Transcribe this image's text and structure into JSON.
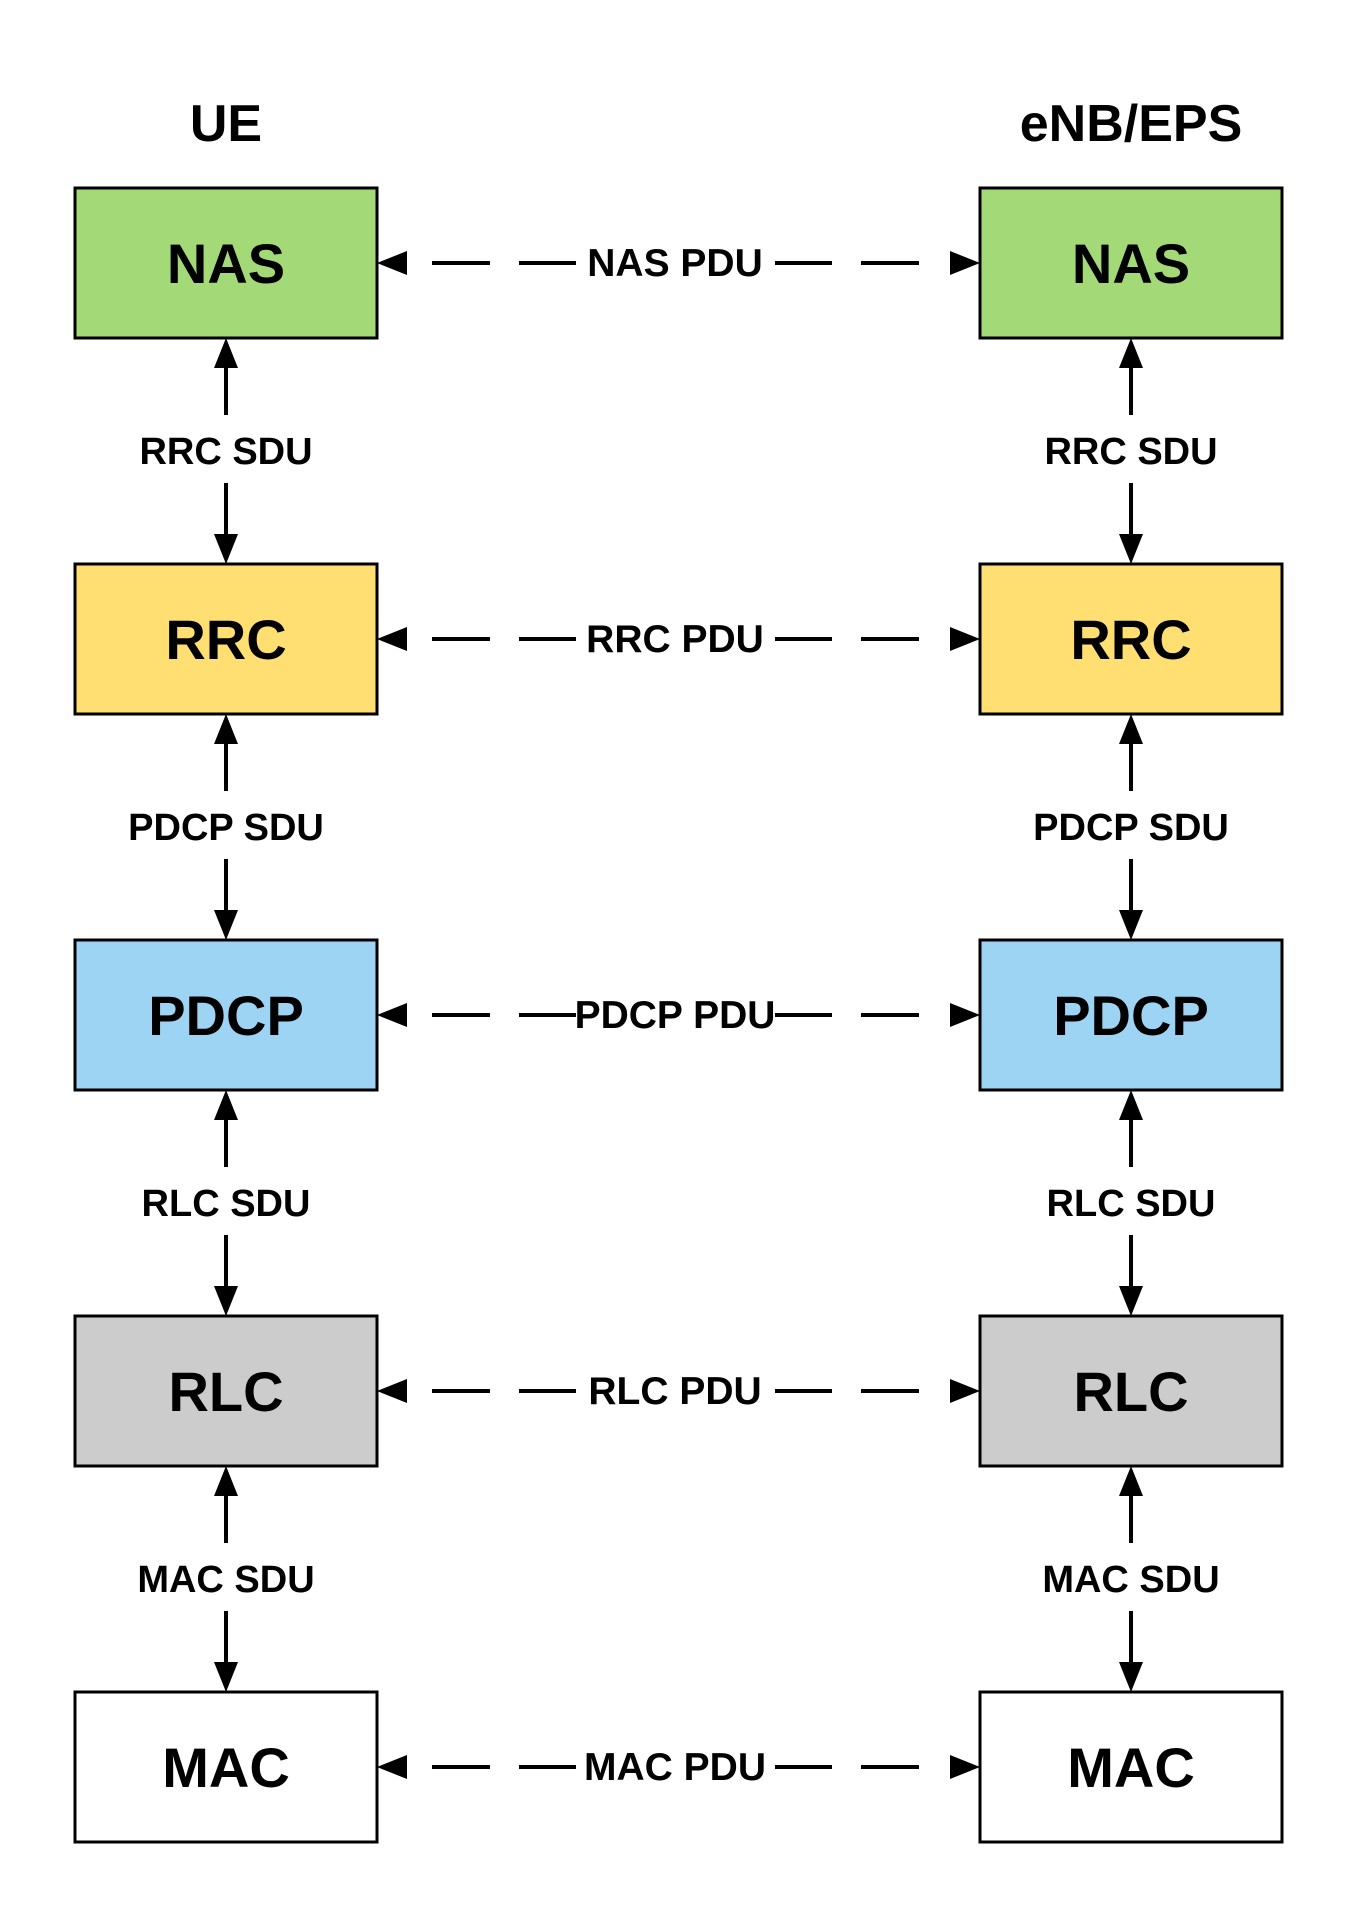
{
  "columns": {
    "left": {
      "title": "UE"
    },
    "right": {
      "title": "eNB/EPS"
    }
  },
  "layers": [
    {
      "name": "NAS",
      "color": "#a3da77",
      "peer_label": "NAS PDU",
      "sdu_below": "RRC SDU"
    },
    {
      "name": "RRC",
      "color": "#ffdf71",
      "peer_label": "RRC PDU",
      "sdu_below": "PDCP SDU"
    },
    {
      "name": "PDCP",
      "color": "#9dd4f3",
      "peer_label": "PDCP PDU",
      "sdu_below": "RLC SDU"
    },
    {
      "name": "RLC",
      "color": "#cccccc",
      "peer_label": "RLC PDU",
      "sdu_below": "MAC SDU"
    },
    {
      "name": "MAC",
      "color": "#ffffff",
      "peer_label": "MAC PDU",
      "sdu_below": null
    }
  ]
}
